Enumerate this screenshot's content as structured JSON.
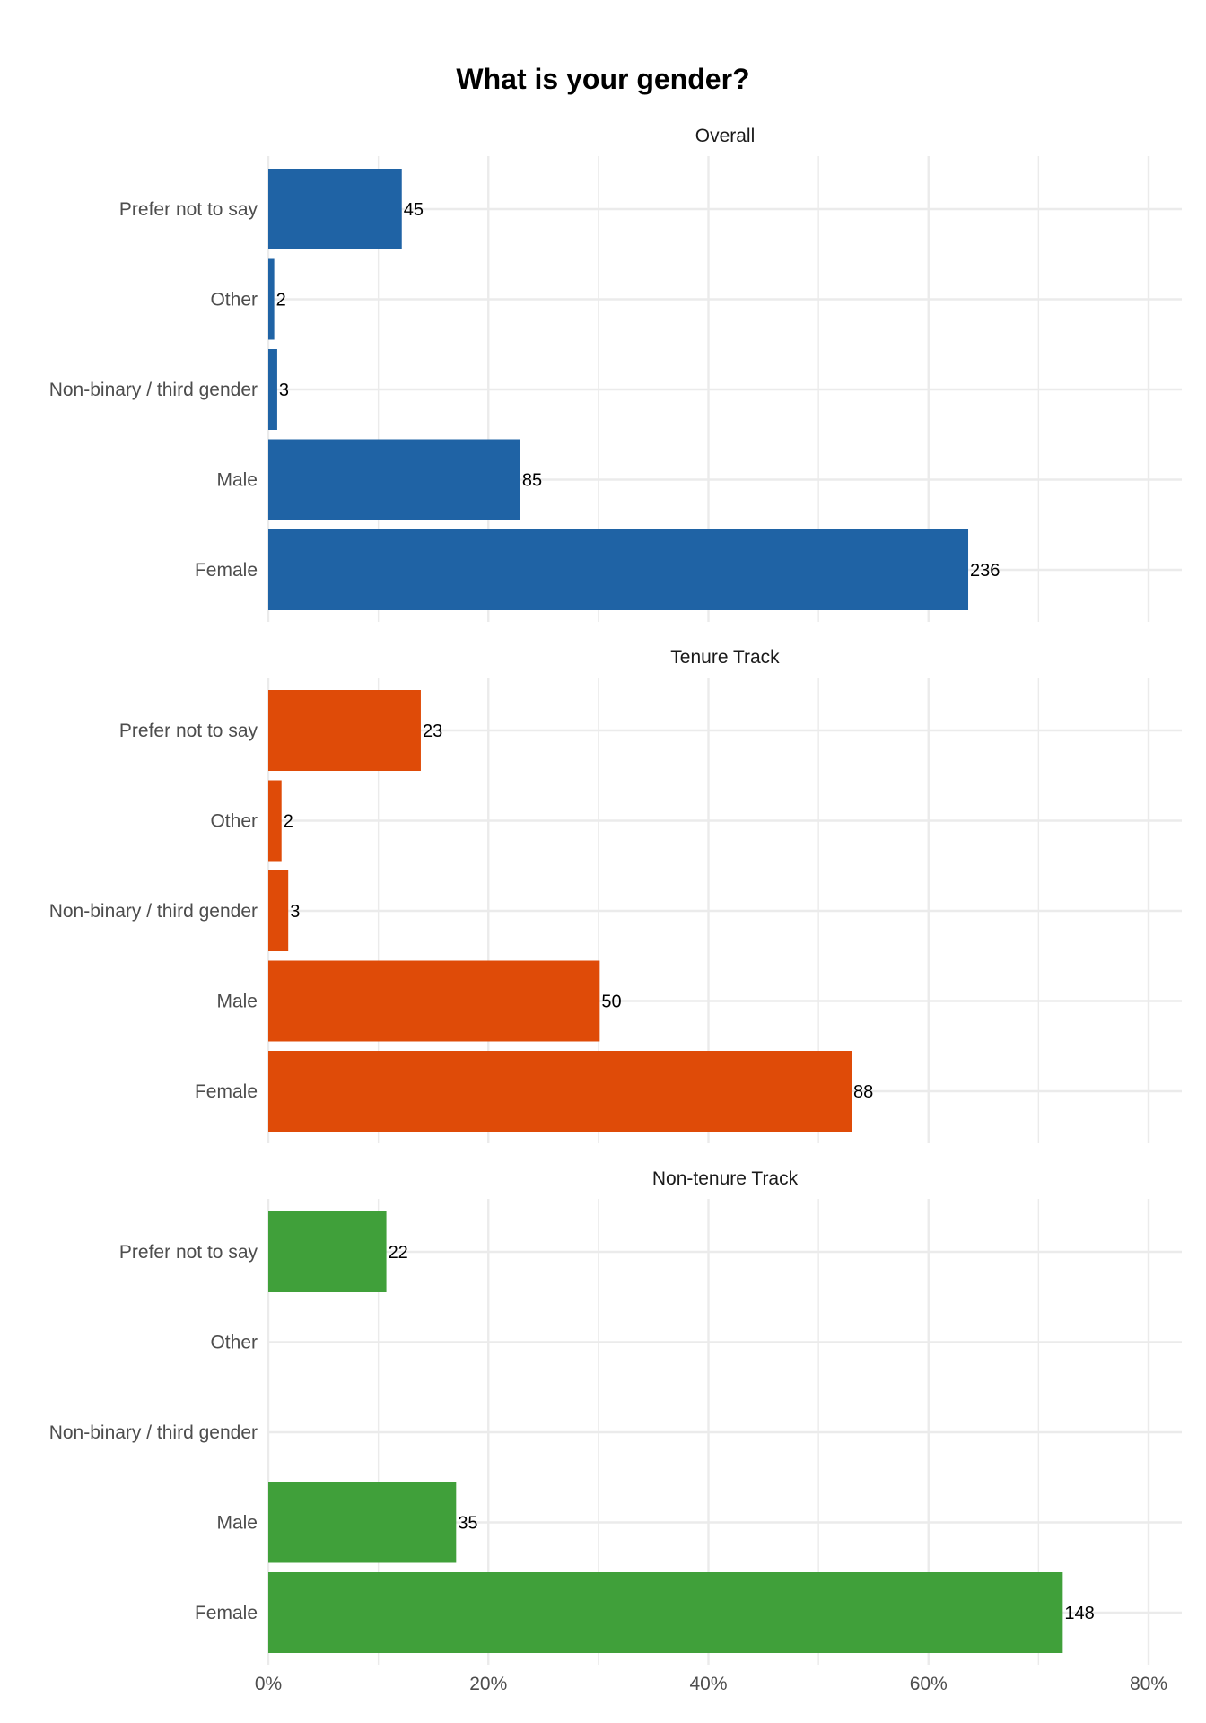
{
  "chart_data": {
    "type": "bar",
    "orientation": "horizontal",
    "title": "What is your gender?",
    "xlim": [
      0,
      0.8
    ],
    "x_ticks": [
      {
        "value": 0,
        "label": "0%"
      },
      {
        "value": 0.2,
        "label": "20%"
      },
      {
        "value": 0.4,
        "label": "40%"
      },
      {
        "value": 0.6,
        "label": "60%"
      },
      {
        "value": 0.8,
        "label": "80%"
      }
    ],
    "grid": true,
    "panels": [
      {
        "title": "Overall",
        "color": "#1f63a5",
        "categories": [
          "Prefer not to say",
          "Other",
          "Non-binary / third gender",
          "Male",
          "Female"
        ],
        "counts": [
          45,
          2,
          3,
          85,
          236
        ],
        "percents": [
          0.1213,
          0.0054,
          0.0081,
          0.2291,
          0.6361
        ]
      },
      {
        "title": "Tenure Track",
        "color": "#df4b08",
        "categories": [
          "Prefer not to say",
          "Other",
          "Non-binary / third gender",
          "Male",
          "Female"
        ],
        "counts": [
          23,
          2,
          3,
          50,
          88
        ],
        "percents": [
          0.1386,
          0.012,
          0.0181,
          0.3012,
          0.5301
        ]
      },
      {
        "title": "Non-tenure Track",
        "color": "#40a03a",
        "categories": [
          "Prefer not to say",
          "Other",
          "Non-binary / third gender",
          "Male",
          "Female"
        ],
        "counts": [
          22,
          null,
          null,
          35,
          148
        ],
        "percents": [
          0.1073,
          null,
          null,
          0.1707,
          0.722
        ]
      }
    ]
  }
}
